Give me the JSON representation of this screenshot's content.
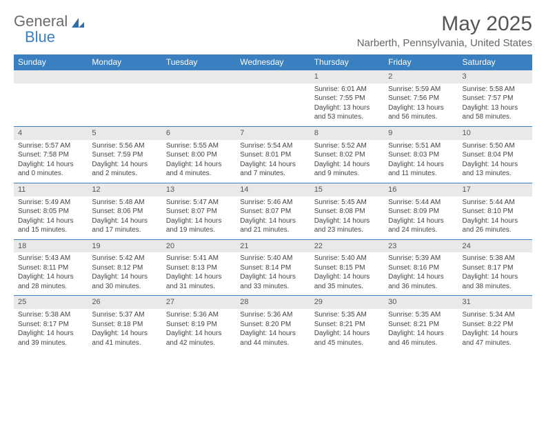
{
  "logo": {
    "text_gen": "General",
    "text_blue": "Blue"
  },
  "title": "May 2025",
  "location": "Narberth, Pennsylvania, United States",
  "colors": {
    "header_bg": "#3a7fbf",
    "header_text": "#ffffff",
    "daynum_bg": "#e9e9e9",
    "border": "#3a7fbf",
    "body_text": "#444444"
  },
  "day_headers": [
    "Sunday",
    "Monday",
    "Tuesday",
    "Wednesday",
    "Thursday",
    "Friday",
    "Saturday"
  ],
  "weeks": [
    [
      {
        "empty": true
      },
      {
        "empty": true
      },
      {
        "empty": true
      },
      {
        "empty": true
      },
      {
        "num": "1",
        "sunrise": "Sunrise: 6:01 AM",
        "sunset": "Sunset: 7:55 PM",
        "daylight": "Daylight: 13 hours and 53 minutes."
      },
      {
        "num": "2",
        "sunrise": "Sunrise: 5:59 AM",
        "sunset": "Sunset: 7:56 PM",
        "daylight": "Daylight: 13 hours and 56 minutes."
      },
      {
        "num": "3",
        "sunrise": "Sunrise: 5:58 AM",
        "sunset": "Sunset: 7:57 PM",
        "daylight": "Daylight: 13 hours and 58 minutes."
      }
    ],
    [
      {
        "num": "4",
        "sunrise": "Sunrise: 5:57 AM",
        "sunset": "Sunset: 7:58 PM",
        "daylight": "Daylight: 14 hours and 0 minutes."
      },
      {
        "num": "5",
        "sunrise": "Sunrise: 5:56 AM",
        "sunset": "Sunset: 7:59 PM",
        "daylight": "Daylight: 14 hours and 2 minutes."
      },
      {
        "num": "6",
        "sunrise": "Sunrise: 5:55 AM",
        "sunset": "Sunset: 8:00 PM",
        "daylight": "Daylight: 14 hours and 4 minutes."
      },
      {
        "num": "7",
        "sunrise": "Sunrise: 5:54 AM",
        "sunset": "Sunset: 8:01 PM",
        "daylight": "Daylight: 14 hours and 7 minutes."
      },
      {
        "num": "8",
        "sunrise": "Sunrise: 5:52 AM",
        "sunset": "Sunset: 8:02 PM",
        "daylight": "Daylight: 14 hours and 9 minutes."
      },
      {
        "num": "9",
        "sunrise": "Sunrise: 5:51 AM",
        "sunset": "Sunset: 8:03 PM",
        "daylight": "Daylight: 14 hours and 11 minutes."
      },
      {
        "num": "10",
        "sunrise": "Sunrise: 5:50 AM",
        "sunset": "Sunset: 8:04 PM",
        "daylight": "Daylight: 14 hours and 13 minutes."
      }
    ],
    [
      {
        "num": "11",
        "sunrise": "Sunrise: 5:49 AM",
        "sunset": "Sunset: 8:05 PM",
        "daylight": "Daylight: 14 hours and 15 minutes."
      },
      {
        "num": "12",
        "sunrise": "Sunrise: 5:48 AM",
        "sunset": "Sunset: 8:06 PM",
        "daylight": "Daylight: 14 hours and 17 minutes."
      },
      {
        "num": "13",
        "sunrise": "Sunrise: 5:47 AM",
        "sunset": "Sunset: 8:07 PM",
        "daylight": "Daylight: 14 hours and 19 minutes."
      },
      {
        "num": "14",
        "sunrise": "Sunrise: 5:46 AM",
        "sunset": "Sunset: 8:07 PM",
        "daylight": "Daylight: 14 hours and 21 minutes."
      },
      {
        "num": "15",
        "sunrise": "Sunrise: 5:45 AM",
        "sunset": "Sunset: 8:08 PM",
        "daylight": "Daylight: 14 hours and 23 minutes."
      },
      {
        "num": "16",
        "sunrise": "Sunrise: 5:44 AM",
        "sunset": "Sunset: 8:09 PM",
        "daylight": "Daylight: 14 hours and 24 minutes."
      },
      {
        "num": "17",
        "sunrise": "Sunrise: 5:44 AM",
        "sunset": "Sunset: 8:10 PM",
        "daylight": "Daylight: 14 hours and 26 minutes."
      }
    ],
    [
      {
        "num": "18",
        "sunrise": "Sunrise: 5:43 AM",
        "sunset": "Sunset: 8:11 PM",
        "daylight": "Daylight: 14 hours and 28 minutes."
      },
      {
        "num": "19",
        "sunrise": "Sunrise: 5:42 AM",
        "sunset": "Sunset: 8:12 PM",
        "daylight": "Daylight: 14 hours and 30 minutes."
      },
      {
        "num": "20",
        "sunrise": "Sunrise: 5:41 AM",
        "sunset": "Sunset: 8:13 PM",
        "daylight": "Daylight: 14 hours and 31 minutes."
      },
      {
        "num": "21",
        "sunrise": "Sunrise: 5:40 AM",
        "sunset": "Sunset: 8:14 PM",
        "daylight": "Daylight: 14 hours and 33 minutes."
      },
      {
        "num": "22",
        "sunrise": "Sunrise: 5:40 AM",
        "sunset": "Sunset: 8:15 PM",
        "daylight": "Daylight: 14 hours and 35 minutes."
      },
      {
        "num": "23",
        "sunrise": "Sunrise: 5:39 AM",
        "sunset": "Sunset: 8:16 PM",
        "daylight": "Daylight: 14 hours and 36 minutes."
      },
      {
        "num": "24",
        "sunrise": "Sunrise: 5:38 AM",
        "sunset": "Sunset: 8:17 PM",
        "daylight": "Daylight: 14 hours and 38 minutes."
      }
    ],
    [
      {
        "num": "25",
        "sunrise": "Sunrise: 5:38 AM",
        "sunset": "Sunset: 8:17 PM",
        "daylight": "Daylight: 14 hours and 39 minutes."
      },
      {
        "num": "26",
        "sunrise": "Sunrise: 5:37 AM",
        "sunset": "Sunset: 8:18 PM",
        "daylight": "Daylight: 14 hours and 41 minutes."
      },
      {
        "num": "27",
        "sunrise": "Sunrise: 5:36 AM",
        "sunset": "Sunset: 8:19 PM",
        "daylight": "Daylight: 14 hours and 42 minutes."
      },
      {
        "num": "28",
        "sunrise": "Sunrise: 5:36 AM",
        "sunset": "Sunset: 8:20 PM",
        "daylight": "Daylight: 14 hours and 44 minutes."
      },
      {
        "num": "29",
        "sunrise": "Sunrise: 5:35 AM",
        "sunset": "Sunset: 8:21 PM",
        "daylight": "Daylight: 14 hours and 45 minutes."
      },
      {
        "num": "30",
        "sunrise": "Sunrise: 5:35 AM",
        "sunset": "Sunset: 8:21 PM",
        "daylight": "Daylight: 14 hours and 46 minutes."
      },
      {
        "num": "31",
        "sunrise": "Sunrise: 5:34 AM",
        "sunset": "Sunset: 8:22 PM",
        "daylight": "Daylight: 14 hours and 47 minutes."
      }
    ]
  ]
}
